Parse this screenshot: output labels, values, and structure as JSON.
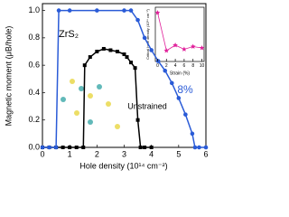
{
  "chart_data": [
    {
      "type": "line",
      "xlabel": "Hole density (10¹⁴ cm⁻²)",
      "ylabel": "Magnetic moment (μB/hole)",
      "annotations": [
        "ZrS₂"
      ],
      "xlim": [
        0,
        6
      ],
      "xticks": [
        0,
        1,
        2,
        3,
        4,
        5,
        6
      ],
      "ylim": [
        0,
        1.05
      ],
      "yticks": [
        {
          "value": 0,
          "label": "0.0"
        },
        {
          "value": 0.2,
          "label": "0.2"
        },
        {
          "value": 0.4,
          "label": "0.4"
        },
        {
          "value": 0.6,
          "label": "0.6"
        },
        {
          "value": 0.8,
          "label": "0.8"
        },
        {
          "value": 1,
          "label": "1.0"
        }
      ],
      "series": [
        {
          "name": "Unstrained",
          "color": "#000000",
          "marker": "square",
          "x": [
            0,
            0.25,
            0.5,
            0.75,
            1,
            1.25,
            1.5,
            1.55,
            1.75,
            2,
            2.25,
            2.5,
            2.75,
            3,
            3.1,
            3.25,
            3.4,
            3.5,
            3.6,
            3.75,
            4
          ],
          "values": [
            0,
            0,
            0,
            0,
            0,
            0,
            0,
            0.6,
            0.66,
            0.7,
            0.72,
            0.71,
            0.7,
            0.68,
            0.66,
            0.62,
            0.58,
            0.2,
            0,
            0,
            0
          ]
        },
        {
          "name": "8%",
          "color": "#2a5bd7",
          "marker": "circle",
          "x": [
            0,
            0.25,
            0.5,
            0.6,
            1,
            2,
            3,
            3.25,
            3.5,
            3.75,
            4,
            4.25,
            4.5,
            4.75,
            5,
            5.25,
            5.5,
            5.6,
            5.75,
            6
          ],
          "values": [
            0,
            0,
            0,
            1,
            1,
            1,
            1,
            1,
            0.93,
            0.8,
            0.71,
            0.63,
            0.56,
            0.47,
            0.36,
            0.24,
            0.1,
            0,
            0,
            0
          ]
        }
      ]
    },
    {
      "type": "line",
      "xlabel": "Strain (%)",
      "ylabel": "Critical hole density (10¹⁴ cm⁻²)",
      "xlim": [
        -0.5,
        10.5
      ],
      "xticks": [
        0,
        2,
        4,
        6,
        8,
        10
      ],
      "ylim": [
        2,
        6
      ],
      "series": [
        {
          "name": null,
          "color": "#e0209a",
          "marker": "star",
          "x": [
            0,
            2,
            4,
            6,
            8,
            10
          ],
          "values": [
            5.6,
            2.8,
            3.2,
            2.9,
            3.1,
            3.0
          ]
        }
      ]
    }
  ]
}
